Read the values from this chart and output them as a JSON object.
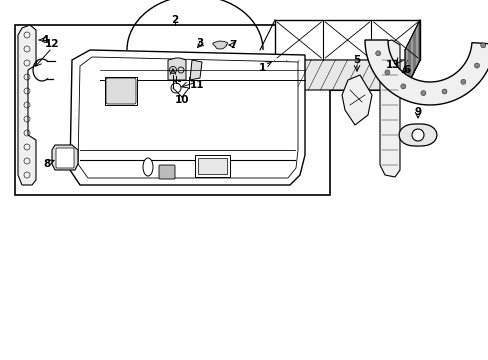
{
  "background_color": "#ffffff",
  "line_color": "#000000",
  "fig_width": 4.89,
  "fig_height": 3.6
}
